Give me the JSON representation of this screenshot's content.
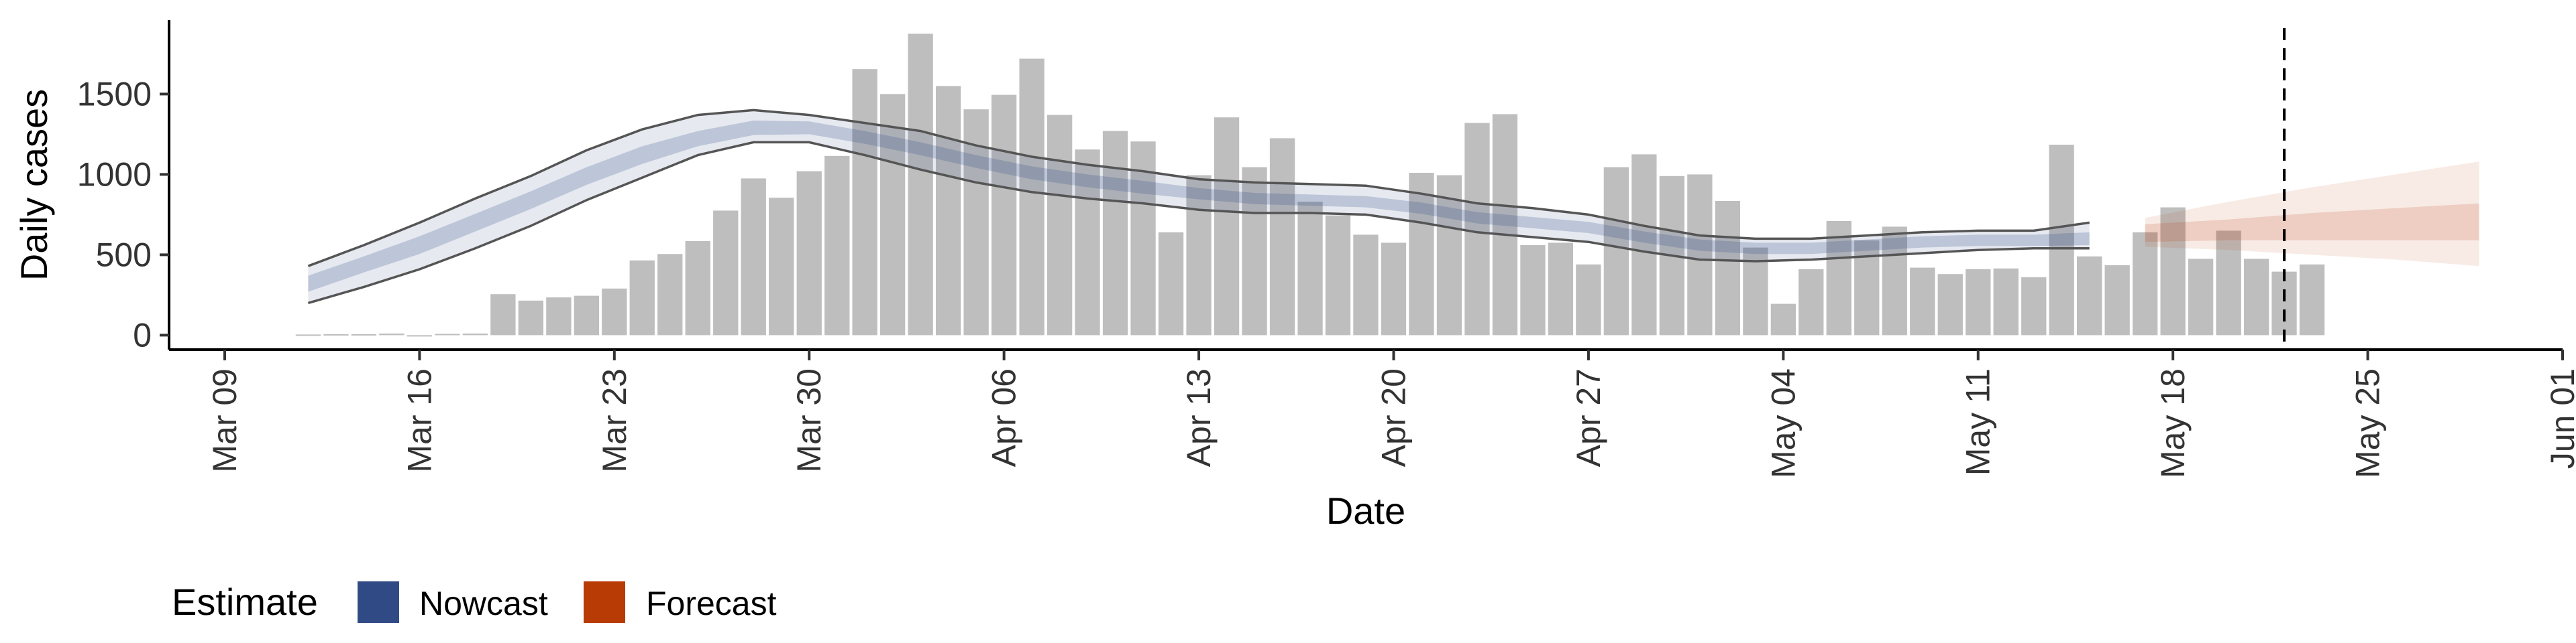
{
  "chart_data": {
    "type": "bar",
    "xlabel": "Date",
    "ylabel": "Daily cases",
    "x_axis": {
      "type": "date",
      "range": [
        "2020-03-07",
        "2020-06-01"
      ],
      "ticks": [
        "Mar 09",
        "Mar 16",
        "Mar 23",
        "Mar 30",
        "Apr 06",
        "Apr 13",
        "Apr 20",
        "Apr 27",
        "May 04",
        "May 11",
        "May 18",
        "May 25",
        "Jun 01"
      ]
    },
    "y_axis": {
      "range": [
        -90,
        1960
      ],
      "ticks": [
        0,
        500,
        1000,
        1500
      ]
    },
    "grid": false,
    "legend": {
      "title": "Estimate",
      "position": "bottom-left",
      "entries": [
        {
          "label": "Nowcast",
          "color": "#2f4a85"
        },
        {
          "label": "Forecast",
          "color": "#b83a05"
        }
      ]
    },
    "bar_color": "#bebebe",
    "nowcast_color": "#2f4a85",
    "forecast_color": "#b83a05",
    "reference_line_date": "2020-05-22",
    "bars": {
      "start_date": "2020-03-12",
      "values": [
        4,
        6,
        6,
        10,
        0,
        8,
        10,
        255,
        215,
        235,
        245,
        290,
        465,
        505,
        585,
        775,
        975,
        855,
        1020,
        1115,
        1655,
        1500,
        1875,
        1550,
        1405,
        1495,
        1720,
        1370,
        1155,
        1270,
        1205,
        640,
        995,
        1355,
        1045,
        1225,
        830,
        745,
        625,
        575,
        1010,
        995,
        1320,
        1375,
        560,
        575,
        440,
        1045,
        1125,
        990,
        1000,
        835,
        545,
        195,
        410,
        710,
        590,
        675,
        420,
        380,
        410,
        415,
        360,
        1185,
        490,
        435,
        640,
        795,
        475,
        650,
        475,
        395,
        440
      ]
    },
    "nowcast": {
      "dates": [
        "2020-03-12",
        "2020-03-14",
        "2020-03-16",
        "2020-03-18",
        "2020-03-20",
        "2020-03-22",
        "2020-03-24",
        "2020-03-26",
        "2020-03-28",
        "2020-03-30",
        "2020-04-01",
        "2020-04-03",
        "2020-04-05",
        "2020-04-07",
        "2020-04-09",
        "2020-04-11",
        "2020-04-13",
        "2020-04-15",
        "2020-04-17",
        "2020-04-19",
        "2020-04-21",
        "2020-04-23",
        "2020-04-25",
        "2020-04-27",
        "2020-04-29",
        "2020-05-01",
        "2020-05-03",
        "2020-05-05",
        "2020-05-07",
        "2020-05-09",
        "2020-05-11",
        "2020-05-13",
        "2020-05-15"
      ],
      "median": [
        320,
        440,
        560,
        700,
        840,
        990,
        1120,
        1220,
        1290,
        1290,
        1230,
        1160,
        1080,
        1010,
        960,
        920,
        880,
        850,
        840,
        830,
        790,
        730,
        700,
        670,
        610,
        560,
        540,
        540,
        560,
        580,
        590,
        590,
        600
      ],
      "lower_20": [
        270,
        390,
        505,
        645,
        785,
        935,
        1065,
        1175,
        1245,
        1250,
        1190,
        1120,
        1040,
        970,
        920,
        880,
        845,
        815,
        805,
        795,
        755,
        695,
        665,
        635,
        575,
        525,
        505,
        505,
        525,
        545,
        555,
        555,
        560
      ],
      "upper_20": [
        370,
        490,
        615,
        755,
        895,
        1045,
        1175,
        1270,
        1335,
        1330,
        1270,
        1200,
        1120,
        1050,
        1000,
        960,
        915,
        885,
        875,
        865,
        825,
        765,
        735,
        705,
        645,
        595,
        575,
        575,
        595,
        615,
        625,
        625,
        640
      ],
      "lower_90": [
        200,
        300,
        410,
        540,
        680,
        840,
        980,
        1120,
        1200,
        1200,
        1120,
        1030,
        950,
        890,
        850,
        820,
        780,
        760,
        760,
        750,
        700,
        640,
        610,
        580,
        520,
        470,
        460,
        470,
        490,
        510,
        530,
        540,
        540
      ],
      "upper_90": [
        430,
        560,
        700,
        850,
        990,
        1150,
        1280,
        1370,
        1400,
        1370,
        1320,
        1270,
        1180,
        1110,
        1060,
        1020,
        970,
        950,
        940,
        930,
        880,
        820,
        790,
        750,
        680,
        620,
        600,
        600,
        620,
        640,
        650,
        650,
        700
      ]
    },
    "forecast": {
      "dates": [
        "2020-05-17",
        "2020-05-20",
        "2020-05-23",
        "2020-05-26",
        "2020-05-29"
      ],
      "median": [
        640,
        660,
        680,
        690,
        700
      ],
      "lower_20": [
        580,
        590,
        590,
        590,
        590
      ],
      "upper_20": [
        690,
        720,
        760,
        790,
        820
      ],
      "lower_90": [
        550,
        530,
        500,
        470,
        430
      ],
      "upper_90": [
        730,
        830,
        920,
        1000,
        1080
      ]
    }
  }
}
